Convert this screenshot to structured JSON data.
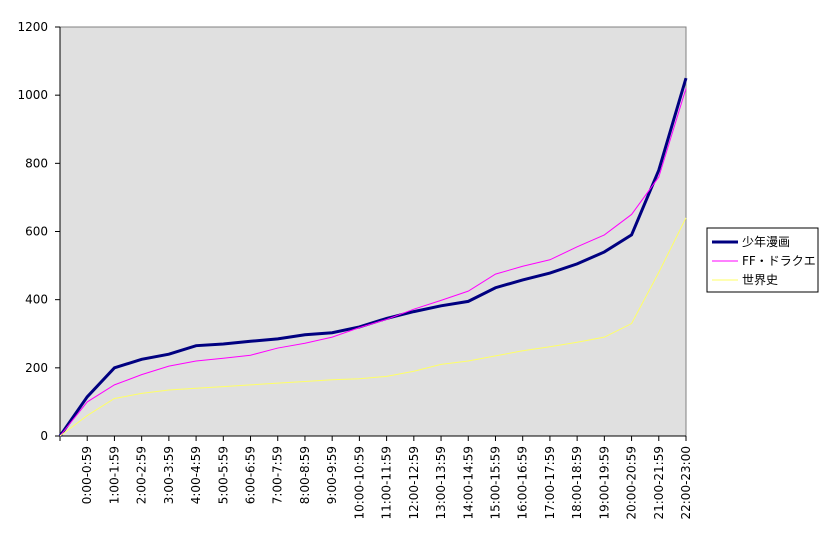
{
  "chart_data": {
    "type": "line",
    "categories": [
      null,
      "0:00-0:59",
      "1:00-1:59",
      "2:00-2:59",
      "3:00-3:59",
      "4:00-4:59",
      "5:00-5:59",
      "6:00-6:59",
      "7:00-7:59",
      "8:00-8:59",
      "9:00-9:59",
      "10:00-10:59",
      "11:00-11:59",
      "12:00-12:59",
      "13:00-13:59",
      "14:00-14:59",
      "15:00-15:59",
      "16:00-16:59",
      "17:00-17:59",
      "18:00-18:59",
      "19:00-19:59",
      "20:00-20:59",
      "21:00-21:59",
      "22:00-23:00"
    ],
    "series": [
      {
        "name": "少年漫画",
        "color": "#000080",
        "width": 3,
        "values": [
          0,
          115,
          200,
          225,
          240,
          265,
          270,
          278,
          285,
          297,
          303,
          320,
          345,
          365,
          382,
          395,
          435,
          458,
          478,
          505,
          540,
          590,
          780,
          1050
        ]
      },
      {
        "name": "FF・ドラクエ",
        "color": "#ff00ff",
        "width": 1,
        "values": [
          0,
          100,
          150,
          180,
          205,
          220,
          228,
          237,
          258,
          272,
          290,
          318,
          342,
          372,
          398,
          425,
          475,
          498,
          517,
          555,
          590,
          650,
          760,
          1020
        ]
      },
      {
        "name": "世界史",
        "color": "#ffff66",
        "width": 1,
        "values": [
          0,
          60,
          110,
          125,
          135,
          140,
          145,
          150,
          155,
          160,
          165,
          168,
          175,
          190,
          210,
          220,
          235,
          250,
          262,
          275,
          290,
          330,
          480,
          640
        ]
      }
    ],
    "ylim": [
      0,
      1200
    ],
    "yticks": [
      0,
      200,
      400,
      600,
      800,
      1000,
      1200
    ],
    "legend": "right",
    "grid": false
  }
}
